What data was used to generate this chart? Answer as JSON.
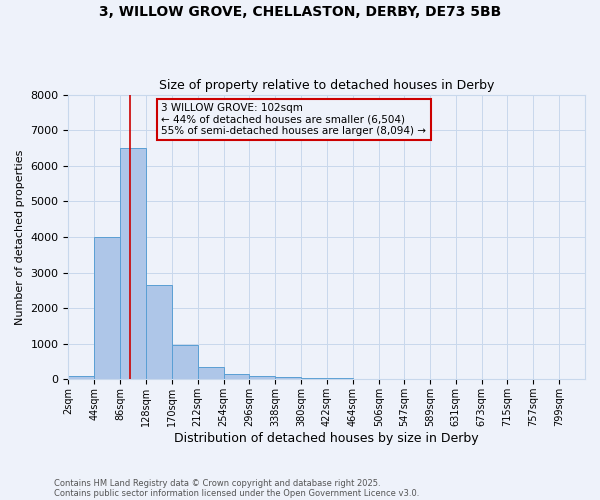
{
  "title1": "3, WILLOW GROVE, CHELLASTON, DERBY, DE73 5BB",
  "title2": "Size of property relative to detached houses in Derby",
  "xlabel": "Distribution of detached houses by size in Derby",
  "ylabel": "Number of detached properties",
  "bar_edges": [
    2,
    44,
    86,
    128,
    170,
    212,
    254,
    296,
    338,
    380,
    422,
    464,
    506,
    547,
    589,
    631,
    673,
    715,
    757,
    799,
    841
  ],
  "bar_heights": [
    100,
    4000,
    6500,
    2650,
    950,
    350,
    150,
    100,
    60,
    40,
    40,
    0,
    0,
    0,
    0,
    0,
    0,
    0,
    0,
    0
  ],
  "bar_color": "#aec6e8",
  "bar_edge_color": "#5a9fd4",
  "property_size": 102,
  "property_name": "3 WILLOW GROVE: 102sqm",
  "pct_smaller": 44,
  "n_smaller": "6,504",
  "pct_larger_semi": 55,
  "n_larger_semi": "8,094",
  "vline_color": "#cc0000",
  "annotation_box_color": "#cc0000",
  "ylim": [
    0,
    8000
  ],
  "yticks": [
    0,
    1000,
    2000,
    3000,
    4000,
    5000,
    6000,
    7000,
    8000
  ],
  "grid_color": "#c8d8ec",
  "bg_color": "#eef2fa",
  "footnote1": "Contains HM Land Registry data © Crown copyright and database right 2025.",
  "footnote2": "Contains public sector information licensed under the Open Government Licence v3.0."
}
